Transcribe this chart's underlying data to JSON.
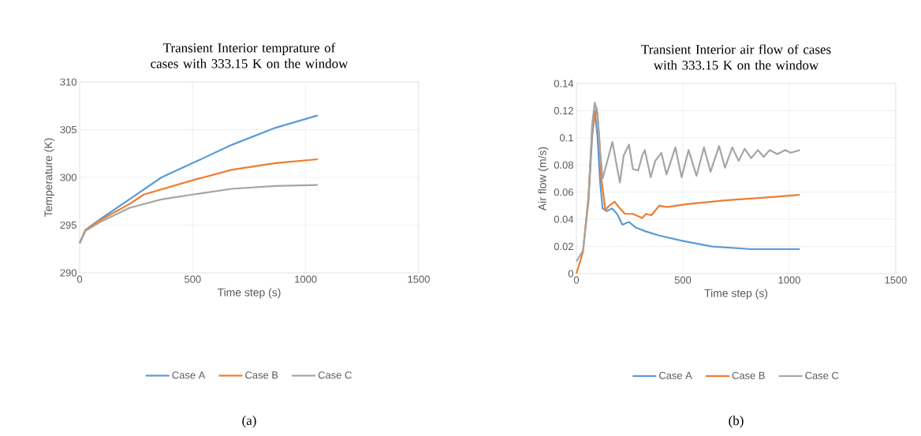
{
  "chart_data": [
    {
      "type": "line",
      "title": "Transient Interior temprature of cases with 333.15 K on the window",
      "xlabel": "Time step (s)",
      "ylabel": "Temperature (K)",
      "annotations": [
        "(a)"
      ],
      "legend": "bottom",
      "grid": true,
      "xlim": [
        0,
        1500
      ],
      "xticks": [
        0,
        500,
        1000,
        1500
      ],
      "ylim": [
        290,
        310
      ],
      "yticks": [
        290,
        295,
        300,
        305,
        310
      ],
      "series": [
        {
          "name": "Case A",
          "color": "#5b9bd5",
          "x": [
            0,
            26,
            90,
            220,
            362,
            500,
            672,
            866,
            1053
          ],
          "values": [
            293.1,
            294.5,
            295.6,
            297.7,
            300.0,
            301.5,
            303.4,
            305.2,
            306.5
          ]
        },
        {
          "name": "Case B",
          "color": "#ed7d31",
          "x": [
            0,
            26,
            90,
            220,
            284,
            500,
            672,
            866,
            1053
          ],
          "values": [
            293.1,
            294.5,
            295.5,
            297.2,
            298.2,
            299.7,
            300.8,
            301.5,
            301.9
          ]
        },
        {
          "name": "Case C",
          "color": "#a5a5a5",
          "x": [
            0,
            26,
            90,
            220,
            362,
            500,
            672,
            866,
            1053
          ],
          "values": [
            293.1,
            294.4,
            295.3,
            296.8,
            297.7,
            298.2,
            298.8,
            299.1,
            299.2
          ]
        }
      ]
    },
    {
      "type": "line",
      "title": "Transient Interior air flow of cases with 333.15 K on the window",
      "xlabel": "Time step (s)",
      "ylabel": "Air flow (m/s)",
      "annotations": [
        "(b)"
      ],
      "legend": "bottom",
      "grid": true,
      "xlim": [
        0,
        1500
      ],
      "xticks": [
        0,
        500,
        1000,
        1500
      ],
      "ylim": [
        0,
        0.14
      ],
      "yticks": [
        0,
        0.02,
        0.04,
        0.06,
        0.08,
        0.1,
        0.12,
        0.14
      ],
      "series": [
        {
          "name": "Case A",
          "color": "#5b9bd5",
          "x": [
            56,
            74,
            86,
            99,
            111,
            123,
            142,
            167,
            191,
            216,
            247,
            278,
            327,
            389,
            500,
            636,
            821,
            1049
          ],
          "values": [
            0.052,
            0.101,
            0.12,
            0.101,
            0.068,
            0.048,
            0.046,
            0.048,
            0.044,
            0.036,
            0.038,
            0.034,
            0.031,
            0.028,
            0.024,
            0.02,
            0.018,
            0.018
          ]
        },
        {
          "name": "Case B",
          "color": "#ed7d31",
          "x": [
            0,
            31,
            56,
            74,
            95,
            107,
            117,
            136,
            154,
            179,
            204,
            228,
            265,
            309,
            327,
            352,
            389,
            426,
            512,
            698,
            883,
            1049
          ],
          "values": [
            0,
            0.016,
            0.056,
            0.105,
            0.122,
            0.101,
            0.07,
            0.047,
            0.05,
            0.053,
            0.048,
            0.044,
            0.044,
            0.041,
            0.044,
            0.043,
            0.05,
            0.049,
            0.051,
            0.054,
            0.056,
            0.058
          ]
        },
        {
          "name": "Case C",
          "color": "#a5a5a5",
          "x": [
            0,
            31,
            56,
            74,
            86,
            99,
            111,
            123,
            142,
            169,
            204,
            222,
            247,
            265,
            290,
            309,
            321,
            349,
            370,
            399,
            423,
            465,
            494,
            527,
            564,
            599,
            630,
            670,
            698,
            732,
            762,
            790,
            821,
            852,
            880,
            907,
            944,
            981,
            1006,
            1049
          ],
          "values": [
            0.009,
            0.017,
            0.052,
            0.11,
            0.126,
            0.118,
            0.091,
            0.07,
            0.081,
            0.097,
            0.067,
            0.087,
            0.095,
            0.077,
            0.076,
            0.087,
            0.091,
            0.071,
            0.083,
            0.089,
            0.073,
            0.093,
            0.071,
            0.091,
            0.072,
            0.093,
            0.075,
            0.094,
            0.078,
            0.093,
            0.083,
            0.092,
            0.085,
            0.091,
            0.086,
            0.091,
            0.088,
            0.091,
            0.089,
            0.091
          ]
        }
      ]
    }
  ]
}
